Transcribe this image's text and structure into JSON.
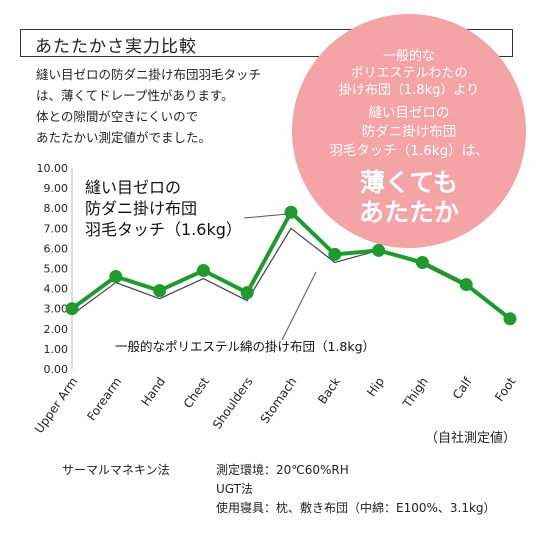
{
  "header": {
    "title": "あたたかさ実力比較"
  },
  "intro": {
    "lines": [
      "縫い目ゼロの防ダニ掛け布団羽毛タッチ",
      "は、薄くてドレープ性があります。",
      "体との隙間が空きにくいので",
      "あたたかい測定値がでました。"
    ]
  },
  "bubble": {
    "lines1": [
      "一般的な",
      "ポリエステルわたの",
      "掛け布団（1.8kg）より"
    ],
    "lines2": [
      "縫い目ゼロの",
      "防ダニ掛け布団",
      "羽毛タッチ（1.6kg）は、"
    ],
    "lines3": [
      "薄くても",
      "あたたか"
    ]
  },
  "chart_data": {
    "type": "line",
    "categories": [
      "Upper Arm",
      "Forearm",
      "Hand",
      "Chest",
      "Shoulders",
      "Stomach",
      "Back",
      "Hip",
      "Thigh",
      "Calf",
      "Foot"
    ],
    "series": [
      {
        "name": "縫い目ゼロの防ダニ掛け布団羽毛タッチ（1.6kg）",
        "values": [
          3.0,
          4.6,
          3.9,
          4.9,
          3.8,
          7.8,
          5.7,
          5.9,
          5.3,
          4.2,
          2.5
        ],
        "color": "#1e9a2e",
        "markers": true
      },
      {
        "name": "一般的なポリエステル綿の掛け布団（1.8kg）",
        "values": [
          2.7,
          4.3,
          3.5,
          4.5,
          3.4,
          7.0,
          5.3,
          5.9,
          5.2,
          4.1,
          2.6
        ],
        "color": "#444444",
        "markers": false
      }
    ],
    "y_ticks": [
      "0.00",
      "1.00",
      "2.00",
      "3.00",
      "4.00",
      "5.00",
      "6.00",
      "7.00",
      "8.00",
      "9.00",
      "10.00"
    ],
    "ylim": [
      0,
      10
    ],
    "note": "（自社測定値）",
    "grid": false
  },
  "footer": {
    "method": "サーマルマネキン法",
    "env": "測定環境：20℃60%RH",
    "standard": "UGT法",
    "bedding": "使用寝具：枕、敷き布団（中綿：E100%、3.1kg）"
  }
}
